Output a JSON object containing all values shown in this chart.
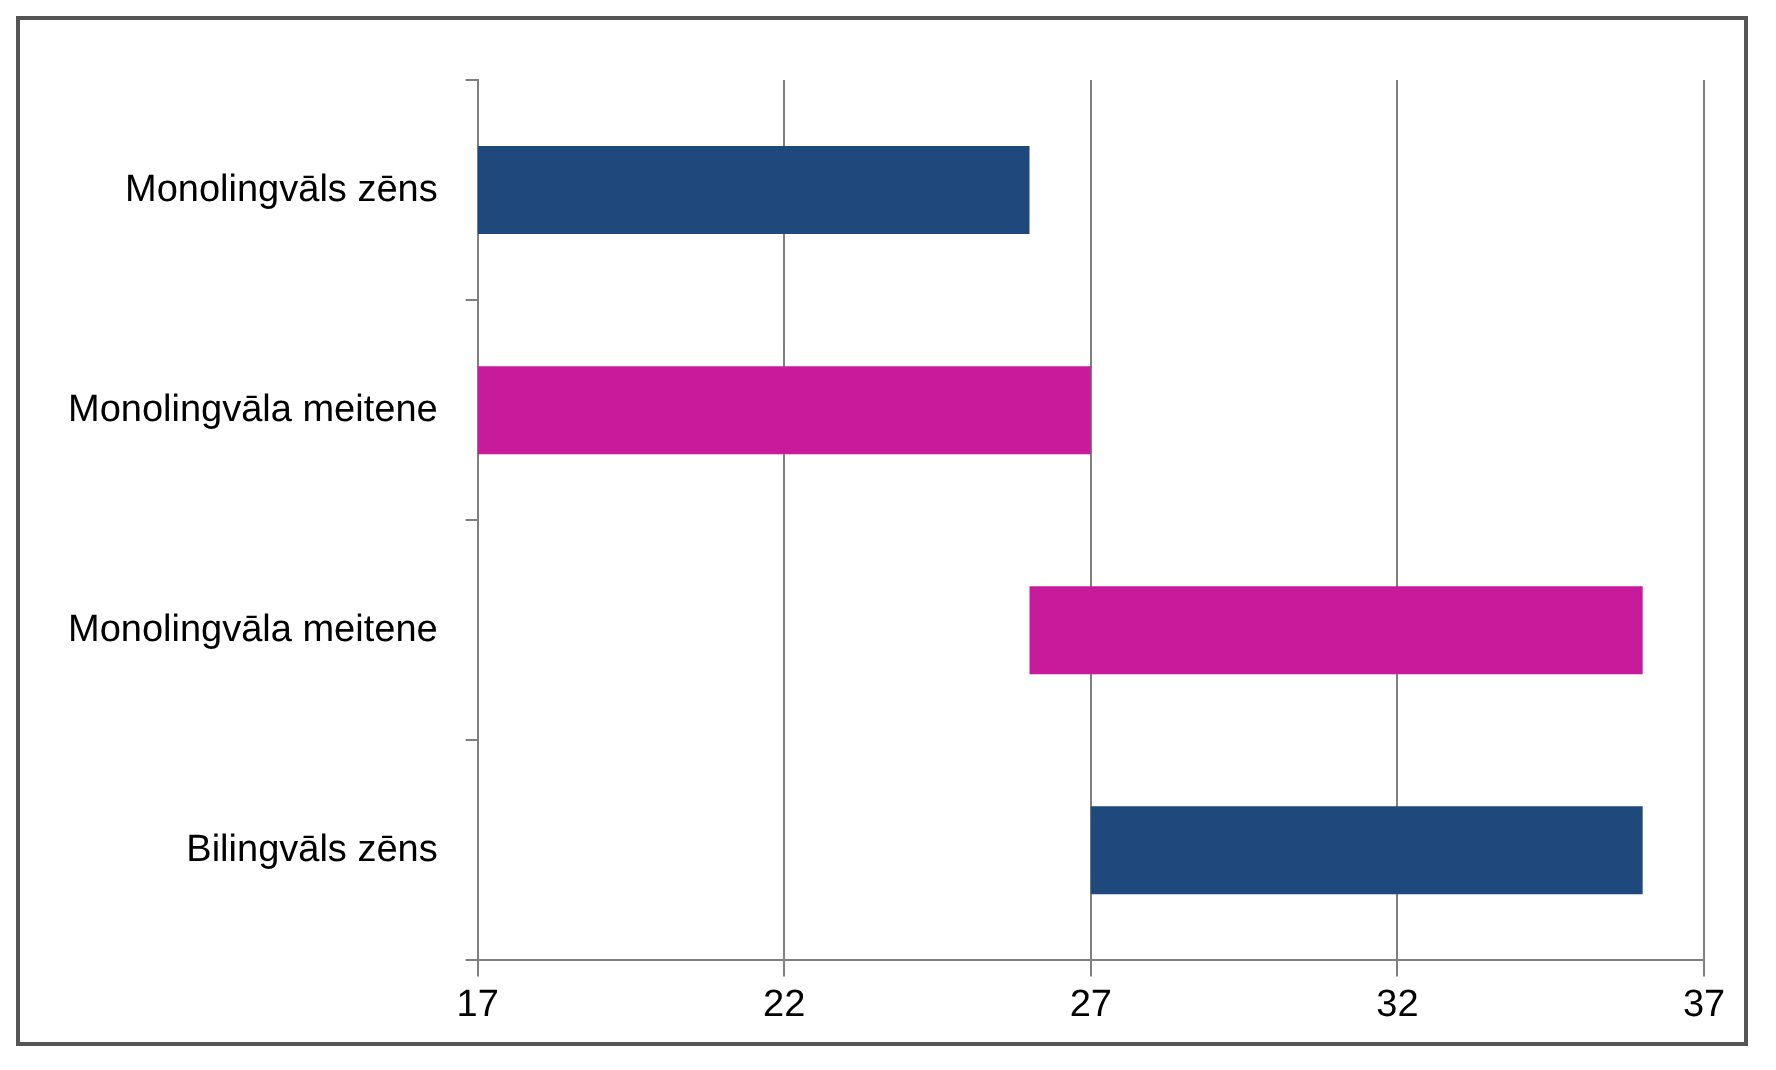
{
  "chart_data": {
    "type": "bar",
    "orientation": "horizontal",
    "categories": [
      "Monolingvāls zēns",
      "Monolingvāla meitene",
      "Monolingvāla meitene",
      "Bilingvāls zēns"
    ],
    "values": [
      9,
      10,
      10,
      9
    ],
    "base": [
      17,
      17,
      26,
      27
    ],
    "colors": [
      "#1f497d",
      "#c71b9b",
      "#c71b9b",
      "#1f497d"
    ],
    "xlim": [
      17,
      37
    ],
    "xticks": [
      17,
      22,
      27,
      32,
      37
    ],
    "grid": "x",
    "legend": false
  }
}
